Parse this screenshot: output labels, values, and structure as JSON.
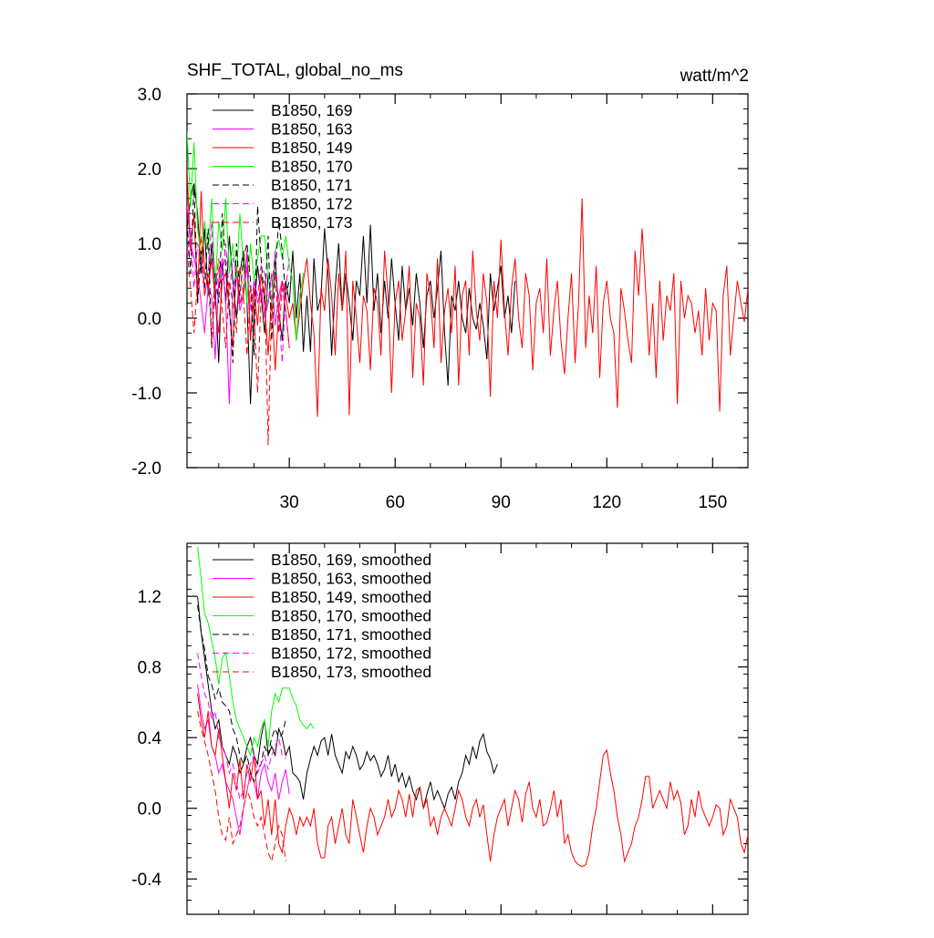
{
  "colors": {
    "axis": "#000000",
    "black": "#000000",
    "magenta": "#ff00ff",
    "red": "#ff0000",
    "green": "#00ff00"
  },
  "chart_data": [
    {
      "type": "line",
      "title": "SHF_TOTAL, global_no_ms",
      "units": "watt/m^2",
      "xlabel": "",
      "ylabel": "",
      "xlim": [
        1,
        160
      ],
      "ylim": [
        -2.0,
        3.0
      ],
      "xticks": [
        30,
        60,
        90,
        120,
        150
      ],
      "xtick_labels": [
        "30",
        "60",
        "90",
        "120",
        "150"
      ],
      "yticks": [
        -2.0,
        -1.0,
        0.0,
        1.0,
        2.0,
        3.0
      ],
      "ytick_labels": [
        "-2.0",
        "-1.0",
        "0.0",
        "1.0",
        "2.0",
        "3.0"
      ],
      "legend_position": "top-left",
      "grid": false,
      "series": [
        {
          "name": "B1850, 169",
          "color": "black",
          "dash": false,
          "x_start": 1,
          "values": [
            1.2,
            1.6,
            1.8,
            1.4,
            0.6,
            1.2,
            0.3,
            1.0,
            0.4,
            -0.6,
            0.8,
            0.2,
            1.1,
            0.5,
            0.0,
            0.6,
            0.9,
            0.2,
            -1.15,
            0.1,
            0.7,
            0.3,
            -0.2,
            0.6,
            0.2,
            0.8,
            0.1,
            -0.3,
            0.5,
            0.2,
            0.9,
            0.0,
            0.6,
            -0.45,
            0.3,
            -0.45,
            0.8,
            0.1,
            0.3,
            1.2,
            0.6,
            -0.5,
            0.4,
            1.0,
            0.1,
            0.6,
            0.2,
            -0.3,
            0.5,
            0.3,
            1.1,
            0.2,
            1.25,
            0.1,
            0.6,
            -0.2,
            0.5,
            0.0,
            0.8,
            0.2,
            -0.3,
            0.7,
            0.1,
            0.4,
            -0.1,
            0.6,
            0.2,
            -0.4,
            0.3,
            0.5,
            0.0,
            0.4,
            0.9,
            -0.2,
            -0.9,
            0.3,
            0.1,
            0.5,
            0.0,
            -0.2,
            0.4,
            0.0,
            -0.15,
            0.2,
            -0.1,
            -0.55,
            0.6,
            0.1,
            0.4,
            0.7,
            0.0,
            0.3,
            -0.2,
            0.5
          ]
        },
        {
          "name": "B1850, 163",
          "color": "magenta",
          "dash": false,
          "x_start": 1,
          "values": [
            1.5,
            1.0,
            0.8,
            0.6,
            0.2,
            -0.2,
            0.4,
            0.3,
            -0.55,
            0.5,
            0.8,
            0.2,
            -1.15,
            0.4,
            0.6,
            0.1,
            0.3,
            0.7,
            -0.3,
            0.5,
            0.2,
            0.4,
            0.0,
            0.2,
            0.6,
            -0.1,
            0.3,
            0.5,
            0.1,
            -0.4
          ]
        },
        {
          "name": "B1850, 149",
          "color": "red",
          "dash": false,
          "x_start": 1,
          "values": [
            2.0,
            0.9,
            1.4,
            0.2,
            1.7,
            0.6,
            0.4,
            0.8,
            0.2,
            -0.2,
            0.5,
            0.6,
            0.1,
            -0.4,
            0.7,
            0.2,
            0.3,
            0.9,
            -0.3,
            0.4,
            -0.1,
            0.6,
            0.2,
            -0.5,
            0.3,
            -0.7,
            0.1,
            0.5,
            0.3,
            0.0,
            0.2,
            -0.3,
            0.1,
            0.5,
            0.8,
            0.2,
            -0.2,
            -1.32,
            0.4,
            0.1,
            0.8,
            0.3,
            -0.5,
            0.6,
            0.1,
            0.9,
            -1.3,
            0.5,
            0.0,
            -0.6,
            0.3,
            0.1,
            -0.7,
            0.4,
            0.2,
            -0.5,
            0.9,
            0.3,
            -1.0,
            0.2,
            0.5,
            -0.3,
            0.1,
            0.7,
            -0.8,
            0.2,
            0.0,
            -0.9,
            0.6,
            0.3,
            -0.4,
            0.8,
            -0.6,
            0.1,
            0.4,
            -0.2,
            0.7,
            -0.9,
            0.3,
            0.5,
            -0.5,
            0.9,
            0.1,
            -0.3,
            0.6,
            0.2,
            -1.05,
            0.5,
            0.0,
            1.05,
            0.1,
            -0.5,
            0.4,
            0.8,
            0.0,
            -0.4,
            0.6,
            0.3,
            -0.7,
            0.2,
            0.4,
            -0.2,
            0.8,
            -0.5,
            0.1,
            0.5,
            -0.3,
            -0.75,
            0.0,
            0.6,
            -0.6,
            0.2,
            1.6,
            -0.4,
            0.3,
            -0.2,
            0.7,
            -0.8,
            0.2,
            0.5,
            0.0,
            -0.2,
            -1.2,
            0.4,
            0.1,
            -0.3,
            -0.6,
            0.9,
            0.3,
            1.2,
            0.4,
            -0.5,
            0.2,
            -0.8,
            0.5,
            -0.3,
            0.3,
            0.1,
            0.6,
            -1.15,
            0.5,
            0.0,
            0.3,
            0.2,
            -0.2,
            0.1,
            -0.5,
            0.4,
            -0.3,
            0.2,
            0.1,
            -1.25,
            0.3,
            0.7,
            -0.5,
            0.0,
            0.5,
            0.2,
            -0.05,
            0.4,
            -0.45,
            0.6,
            0.3,
            -0.05
          ]
        },
        {
          "name": "B1850, 170",
          "color": "green",
          "dash": false,
          "x_start": 1,
          "values": [
            2.5,
            1.5,
            2.35,
            1.2,
            0.8,
            1.3,
            0.9,
            1.6,
            0.4,
            1.3,
            0.9,
            1.6,
            0.6,
            1.0,
            0.5,
            1.4,
            0.7,
            0.2,
            1.0,
            0.5,
            0.8,
            1.1,
            1.1,
            0.6,
            0.2,
            0.9,
            1.05,
            0.8,
            1.1,
            0.7,
            0.5,
            -0.3,
            0.3,
            0.6
          ]
        },
        {
          "name": "B1850, 171",
          "color": "black",
          "dash": true,
          "x_start": 1,
          "values": [
            1.3,
            0.6,
            1.8,
            0.2,
            0.9,
            0.4,
            1.2,
            -0.4,
            0.6,
            0.2,
            1.4,
            0.7,
            0.2,
            -0.6,
            1.0,
            0.3,
            0.8,
            1.0,
            0.5,
            -0.5,
            1.5,
            0.8,
            0.2,
            1.1,
            -0.3,
            0.6,
            1.3,
            0.9,
            0.3,
            0.5
          ]
        },
        {
          "name": "B1850, 172",
          "color": "magenta",
          "dash": true,
          "x_start": 1,
          "values": [
            0.7,
            1.2,
            0.4,
            1.0,
            0.8,
            0.3,
            0.6,
            1.3,
            0.2,
            0.7,
            0.5,
            1.0,
            0.3,
            0.8,
            0.6,
            0.2,
            0.4,
            0.9,
            0.1,
            0.5,
            0.3,
            0.7,
            0.6,
            0.2,
            0.4,
            0.9,
            0.1,
            -0.6,
            0.4,
            0.8
          ]
        },
        {
          "name": "B1850, 173",
          "color": "red",
          "dash": true,
          "x_start": 1,
          "values": [
            0.9,
            0.4,
            -0.2,
            0.5,
            1.1,
            0.3,
            0.6,
            -0.3,
            0.4,
            0.8,
            0.1,
            -0.4,
            0.5,
            0.2,
            -0.2,
            0.7,
            0.3,
            -0.5,
            0.4,
            0.1,
            -1.0,
            0.3,
            0.5,
            -1.7,
            0.2,
            0.6,
            -0.2,
            0.4,
            0.1,
            -0.4
          ]
        }
      ]
    },
    {
      "type": "line",
      "title": "",
      "units": "",
      "xlabel": "",
      "ylabel": "",
      "xlim": [
        1,
        160
      ],
      "ylim": [
        -0.6,
        1.5
      ],
      "xticks": [
        30,
        60,
        90,
        120,
        150
      ],
      "xtick_labels": [],
      "yticks": [
        -0.4,
        0.0,
        0.4,
        0.8,
        1.2
      ],
      "ytick_labels": [
        "-0.4",
        "0.0",
        "0.4",
        "0.8",
        "1.2"
      ],
      "legend_position": "top-left",
      "grid": false,
      "series": [
        {
          "name": "B1850, 169, smoothed",
          "color": "black",
          "dash": false,
          "x_start": 4,
          "values": [
            1.2,
            1.0,
            0.85,
            0.7,
            0.55,
            0.45,
            0.5,
            0.35,
            0.3,
            0.25,
            0.35,
            0.3,
            0.2,
            0.25,
            0.35,
            0.4,
            0.3,
            0.25,
            0.4,
            0.5,
            0.3,
            0.35,
            0.3,
            0.45,
            0.4,
            0.3,
            0.35,
            0.2,
            0.18,
            0.15,
            0.05,
            0.2,
            0.28,
            0.35,
            0.3,
            0.38,
            0.4,
            0.3,
            0.42,
            0.3,
            0.25,
            0.2,
            0.32,
            0.28,
            0.35,
            0.3,
            0.22,
            0.25,
            0.32,
            0.27,
            0.3,
            0.25,
            0.18,
            0.22,
            0.3,
            0.18,
            0.25,
            0.15,
            0.2,
            0.12,
            0.18,
            0.1,
            0.05,
            0.12,
            0.0,
            0.08,
            0.15,
            0.05,
            0.1,
            0.05,
            0.0,
            0.08,
            0.12,
            0.05,
            0.15,
            0.2,
            0.3,
            0.25,
            0.35,
            0.28,
            0.38,
            0.42,
            0.32,
            0.28,
            0.2,
            0.25
          ]
        },
        {
          "name": "B1850, 163, smoothed",
          "color": "magenta",
          "dash": false,
          "x_start": 4,
          "values": [
            0.7,
            0.55,
            0.45,
            0.5,
            0.35,
            0.3,
            0.2,
            0.25,
            0.15,
            0.1,
            0.05,
            -0.05,
            -0.15,
            0.0,
            0.1,
            0.2,
            0.15,
            0.05,
            0.2,
            0.25,
            0.15,
            0.1,
            0.2,
            0.05,
            0.15,
            0.22,
            0.08
          ]
        },
        {
          "name": "B1850, 149, smoothed",
          "color": "red",
          "dash": false,
          "x_start": 4,
          "values": [
            0.65,
            0.5,
            0.4,
            0.55,
            0.35,
            0.3,
            0.45,
            0.3,
            0.15,
            0.0,
            0.2,
            0.1,
            0.28,
            0.05,
            0.25,
            0.15,
            0.3,
            0.05,
            0.1,
            -0.1,
            0.05,
            -0.15,
            0.05,
            -0.2,
            -0.25,
            -0.1,
            0.0,
            -0.05,
            -0.15,
            -0.05,
            -0.1,
            -0.05,
            -0.1,
            0.0,
            -0.2,
            -0.28,
            -0.28,
            -0.1,
            -0.05,
            -0.2,
            -0.1,
            0.0,
            -0.15,
            -0.2,
            0.05,
            -0.05,
            -0.15,
            -0.25,
            -0.1,
            0.0,
            -0.05,
            -0.15,
            -0.1,
            -0.05,
            0.05,
            -0.05,
            0.0,
            0.1,
            0.05,
            -0.05,
            0.08,
            -0.05,
            0.1,
            0.12,
            0.0,
            0.05,
            -0.1,
            -0.05,
            -0.15,
            -0.05,
            0.0,
            -0.05,
            -0.1,
            0.0,
            0.1,
            0.05,
            -0.05,
            -0.1,
            0.0,
            0.05,
            -0.05,
            0.02,
            -0.15,
            -0.3,
            -0.15,
            -0.05,
            0.0,
            0.05,
            -0.1,
            0.0,
            0.1,
            0.05,
            -0.08,
            0.08,
            0.15,
            0.0,
            -0.05,
            0.05,
            -0.1,
            -0.08,
            0.0,
            0.1,
            -0.05,
            0.05,
            -0.2,
            -0.15,
            -0.25,
            -0.3,
            -0.32,
            -0.33,
            -0.32,
            -0.25,
            -0.1,
            0.0,
            0.15,
            0.3,
            0.33,
            0.2,
            0.1,
            -0.05,
            -0.15,
            -0.3,
            -0.25,
            -0.2,
            -0.1,
            -0.05,
            0.05,
            0.18,
            0.18,
            0.0,
            0.05,
            0.1,
            0.05,
            0.0,
            0.15,
            0.05,
            0.1,
            0.03,
            -0.15,
            -0.1,
            0.05,
            -0.05,
            0.1,
            0.0,
            -0.05,
            -0.1,
            -0.05,
            0.02,
            0.0,
            -0.15,
            -0.1,
            0.05,
            0.0,
            -0.05,
            -0.2,
            -0.25,
            -0.15,
            -0.2,
            -0.15
          ]
        },
        {
          "name": "B1850, 170, smoothed",
          "color": "green",
          "dash": false,
          "x_start": 4,
          "values": [
            1.48,
            1.3,
            1.1,
            1.05,
            0.95,
            0.85,
            0.7,
            0.85,
            0.88,
            0.75,
            0.6,
            0.5,
            0.45,
            0.4,
            0.35,
            0.3,
            0.4,
            0.35,
            0.45,
            0.5,
            0.35,
            0.55,
            0.65,
            0.6,
            0.68,
            0.68,
            0.68,
            0.62,
            0.58,
            0.5,
            0.47,
            0.45,
            0.48,
            0.45
          ]
        },
        {
          "name": "B1850, 171, smoothed",
          "color": "black",
          "dash": true,
          "x_start": 4,
          "values": [
            1.15,
            1.0,
            0.9,
            0.75,
            0.7,
            0.62,
            0.68,
            0.6,
            0.58,
            0.55,
            0.45,
            0.4,
            0.3,
            0.25,
            0.3,
            0.2,
            0.15,
            0.22,
            0.25,
            0.35,
            0.3,
            0.4,
            0.45,
            0.4,
            0.42,
            0.5
          ]
        },
        {
          "name": "B1850, 172, smoothed",
          "color": "magenta",
          "dash": true,
          "x_start": 4,
          "values": [
            0.88,
            0.75,
            0.65,
            0.6,
            0.5,
            0.55,
            0.4,
            0.35,
            0.3,
            0.2,
            0.25,
            0.15,
            0.05,
            0.1,
            0.2,
            0.25,
            0.3,
            0.2,
            0.25,
            0.3,
            0.22,
            0.3,
            0.35,
            0.4,
            0.3,
            0.28
          ]
        },
        {
          "name": "B1850, 173, smoothed",
          "color": "red",
          "dash": true,
          "x_start": 4,
          "values": [
            0.55,
            0.45,
            0.38,
            0.3,
            0.2,
            0.1,
            -0.05,
            -0.15,
            -0.18,
            -0.05,
            -0.2,
            -0.15,
            -0.1,
            0.0,
            0.1,
            0.05,
            -0.05,
            -0.1,
            -0.05,
            -0.15,
            -0.25,
            -0.3,
            -0.2,
            -0.1,
            -0.15,
            -0.3
          ]
        }
      ]
    }
  ]
}
